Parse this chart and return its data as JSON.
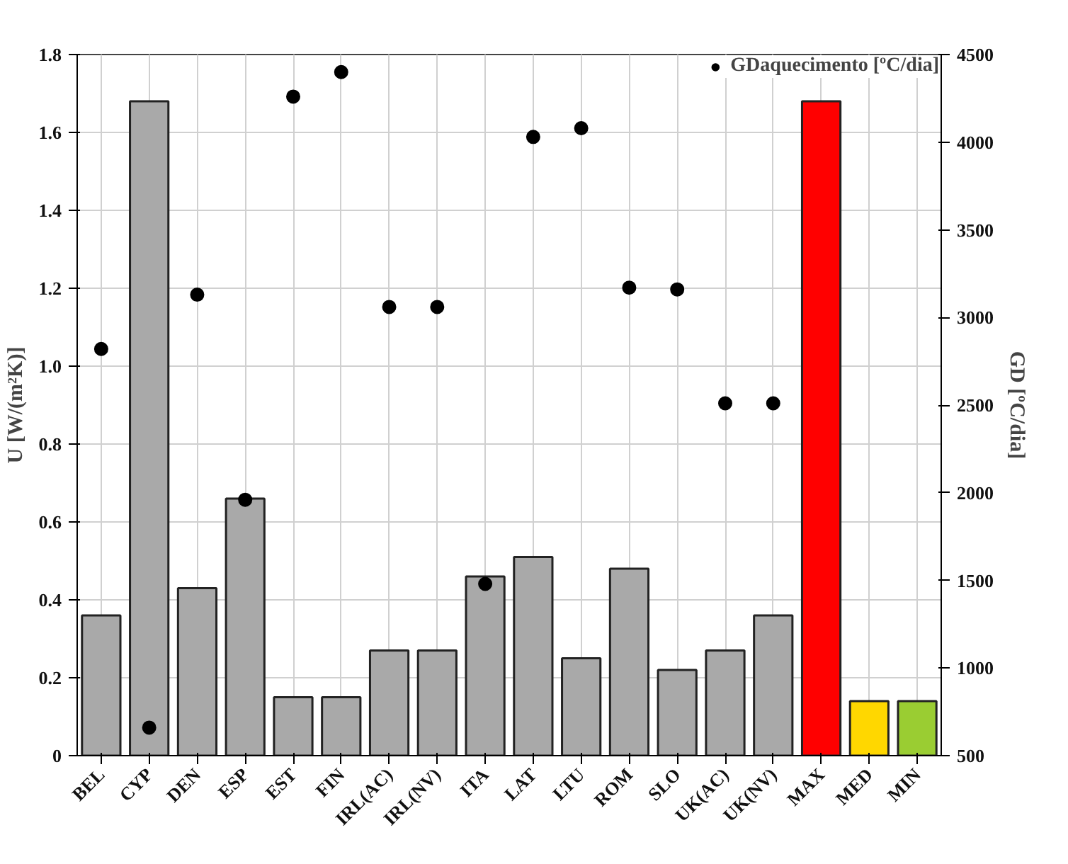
{
  "chart_data": {
    "type": "bar",
    "categories": [
      "BEL",
      "CYP",
      "DEN",
      "ESP",
      "EST",
      "FIN",
      "IRL(AC)",
      "IRL(NV)",
      "ITA",
      "LAT",
      "LTU",
      "ROM",
      "SLO",
      "UK(AC)",
      "UK(NV)",
      "MAX",
      "MED",
      "MIN"
    ],
    "ylabel": "U [W/(m²K)]",
    "y2label": "GD [ºC/dia]",
    "series": [
      {
        "colors": [
          "#a9a9a9",
          "#a9a9a9",
          "#a9a9a9",
          "#a9a9a9",
          "#a9a9a9",
          "#a9a9a9",
          "#a9a9a9",
          "#a9a9a9",
          "#a9a9a9",
          "#a9a9a9",
          "#a9a9a9",
          "#a9a9a9",
          "#a9a9a9",
          "#a9a9a9",
          "#a9a9a9",
          "#ff0000",
          "#ffd700",
          "#9acd32"
        ],
        "values": [
          0.36,
          1.68,
          0.43,
          0.66,
          0.15,
          0.15,
          0.27,
          0.27,
          0.46,
          0.51,
          0.25,
          0.48,
          0.22,
          0.27,
          0.36,
          1.68,
          0.14,
          0.14
        ]
      },
      {
        "type": "scatter",
        "name": "GDaquecimento [ºC/dia]",
        "color": "#000000",
        "axis": "y2",
        "marker": "circle",
        "values": [
          2820,
          660,
          3130,
          1960,
          4260,
          4400,
          3060,
          3060,
          1480,
          4030,
          4080,
          3170,
          3160,
          2510,
          2510,
          null,
          null,
          null
        ]
      }
    ],
    "ylim": [
      0,
      1.8
    ],
    "yticks": [
      0,
      0.2,
      0.4,
      0.6,
      0.8,
      {
        "value": 1.0,
        "label": "1.0"
      },
      1.2,
      1.4,
      1.6,
      1.8
    ],
    "y2lim": [
      500,
      4500
    ],
    "y2ticks": [
      500,
      1000,
      1500,
      2000,
      2500,
      3000,
      3500,
      4000,
      4500
    ],
    "grid": true,
    "legend": "top right"
  }
}
